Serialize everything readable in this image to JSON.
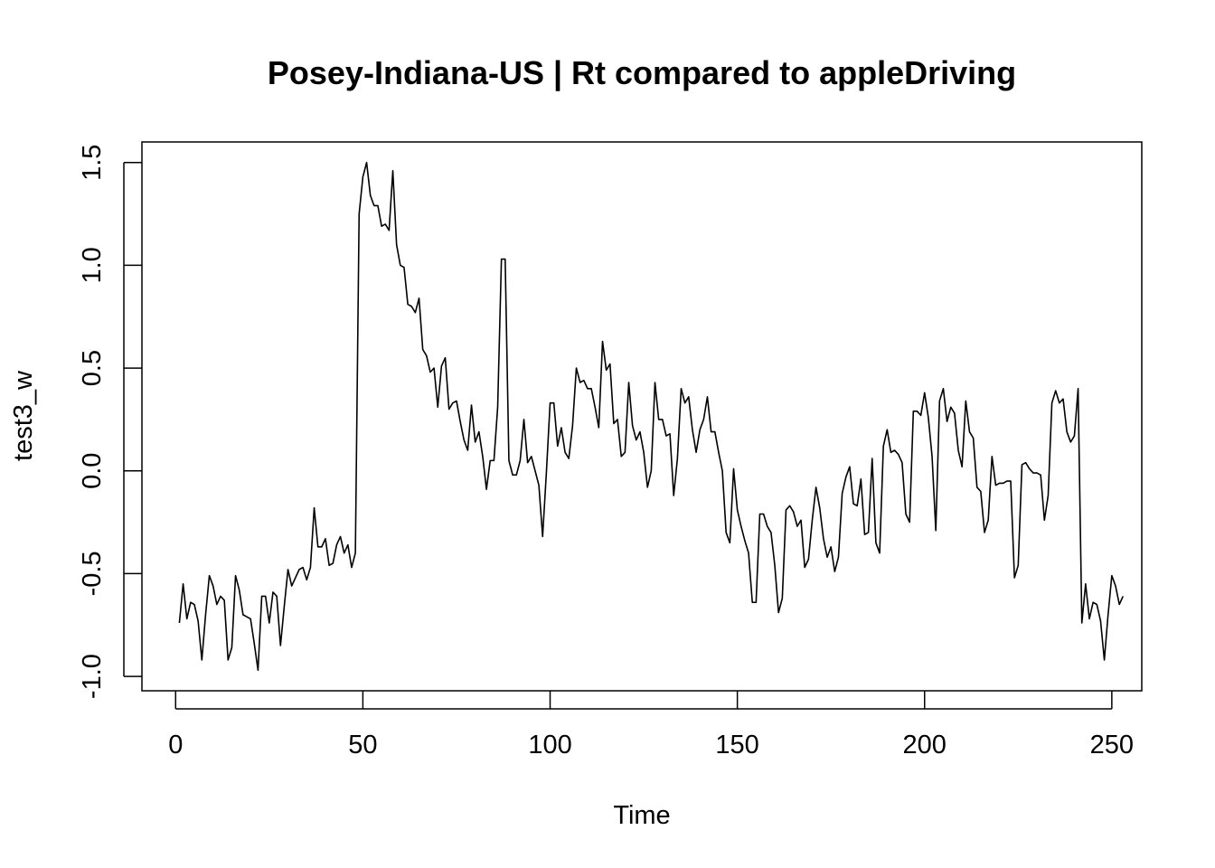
{
  "chart_data": {
    "type": "line",
    "title": "Posey-Indiana-US | Rt compared to appleDriving",
    "xlabel": "Time",
    "ylabel": "test3_w",
    "xlim": [
      -9,
      258
    ],
    "ylim": [
      -1.07,
      1.6
    ],
    "x_ticks": [
      0,
      50,
      100,
      150,
      200,
      250
    ],
    "y_ticks": [
      -1.0,
      -0.5,
      0.0,
      0.5,
      1.0,
      1.5
    ],
    "x_tick_labels": [
      "0",
      "50",
      "100",
      "150",
      "200",
      "250"
    ],
    "y_tick_labels": [
      "-1.0",
      "-0.5",
      "0.0",
      "0.5",
      "1.0",
      "1.5"
    ],
    "grid": false,
    "legend": "none",
    "series": [
      {
        "x_start": 1,
        "x_step": 1,
        "color": "#000000",
        "values": [
          -0.74,
          -0.55,
          -0.72,
          -0.64,
          -0.65,
          -0.73,
          -0.92,
          -0.7,
          -0.51,
          -0.56,
          -0.65,
          -0.61,
          -0.63,
          -0.92,
          -0.86,
          -0.51,
          -0.58,
          -0.7,
          -0.71,
          -0.72,
          -0.84,
          -0.97,
          -0.61,
          -0.61,
          -0.74,
          -0.59,
          -0.61,
          -0.85,
          -0.66,
          -0.48,
          -0.56,
          -0.52,
          -0.48,
          -0.47,
          -0.53,
          -0.47,
          -0.18,
          -0.37,
          -0.37,
          -0.33,
          -0.46,
          -0.45,
          -0.36,
          -0.32,
          -0.4,
          -0.36,
          -0.47,
          -0.4,
          1.25,
          1.43,
          1.5,
          1.34,
          1.29,
          1.29,
          1.19,
          1.2,
          1.17,
          1.46,
          1.1,
          1.0,
          0.99,
          0.81,
          0.8,
          0.77,
          0.84,
          0.59,
          0.56,
          0.48,
          0.5,
          0.31,
          0.51,
          0.55,
          0.3,
          0.33,
          0.34,
          0.24,
          0.15,
          0.1,
          0.32,
          0.14,
          0.19,
          0.07,
          -0.09,
          0.05,
          0.05,
          0.31,
          1.03,
          1.03,
          0.05,
          -0.02,
          -0.02,
          0.05,
          0.25,
          0.04,
          0.07,
          0.0,
          -0.07,
          -0.32,
          -0.01,
          0.33,
          0.33,
          0.12,
          0.21,
          0.09,
          0.06,
          0.22,
          0.5,
          0.43,
          0.44,
          0.4,
          0.4,
          0.31,
          0.21,
          0.63,
          0.49,
          0.52,
          0.23,
          0.25,
          0.07,
          0.09,
          0.43,
          0.22,
          0.15,
          0.19,
          0.09,
          -0.08,
          0.0,
          0.43,
          0.25,
          0.25,
          0.17,
          0.18,
          -0.12,
          0.06,
          0.4,
          0.33,
          0.36,
          0.2,
          0.09,
          0.2,
          0.25,
          0.36,
          0.19,
          0.19,
          0.09,
          0.0,
          -0.3,
          -0.35,
          0.01,
          -0.19,
          -0.27,
          -0.34,
          -0.4,
          -0.64,
          -0.64,
          -0.21,
          -0.21,
          -0.27,
          -0.3,
          -0.46,
          -0.69,
          -0.62,
          -0.19,
          -0.17,
          -0.2,
          -0.27,
          -0.24,
          -0.47,
          -0.43,
          -0.24,
          -0.08,
          -0.18,
          -0.33,
          -0.42,
          -0.37,
          -0.49,
          -0.42,
          -0.11,
          -0.03,
          0.02,
          -0.16,
          -0.17,
          -0.04,
          -0.31,
          -0.3,
          0.06,
          -0.35,
          -0.4,
          0.12,
          0.2,
          0.09,
          0.1,
          0.08,
          0.04,
          -0.21,
          -0.25,
          0.29,
          0.29,
          0.27,
          0.38,
          0.26,
          0.07,
          -0.29,
          0.34,
          0.4,
          0.24,
          0.31,
          0.28,
          0.1,
          0.02,
          0.34,
          0.19,
          0.16,
          -0.08,
          -0.1,
          -0.3,
          -0.24,
          0.07,
          -0.07,
          -0.06,
          -0.06,
          -0.05,
          -0.05,
          -0.52,
          -0.46,
          0.03,
          0.04,
          0.01,
          -0.01,
          -0.01,
          -0.02,
          -0.24,
          -0.12,
          0.33,
          0.39,
          0.33,
          0.35,
          0.19,
          0.14,
          0.17,
          0.4,
          -0.74,
          -0.55,
          -0.72,
          -0.64,
          -0.65,
          -0.73,
          -0.92,
          -0.7,
          -0.51,
          -0.56,
          -0.65,
          -0.61
        ]
      }
    ]
  }
}
